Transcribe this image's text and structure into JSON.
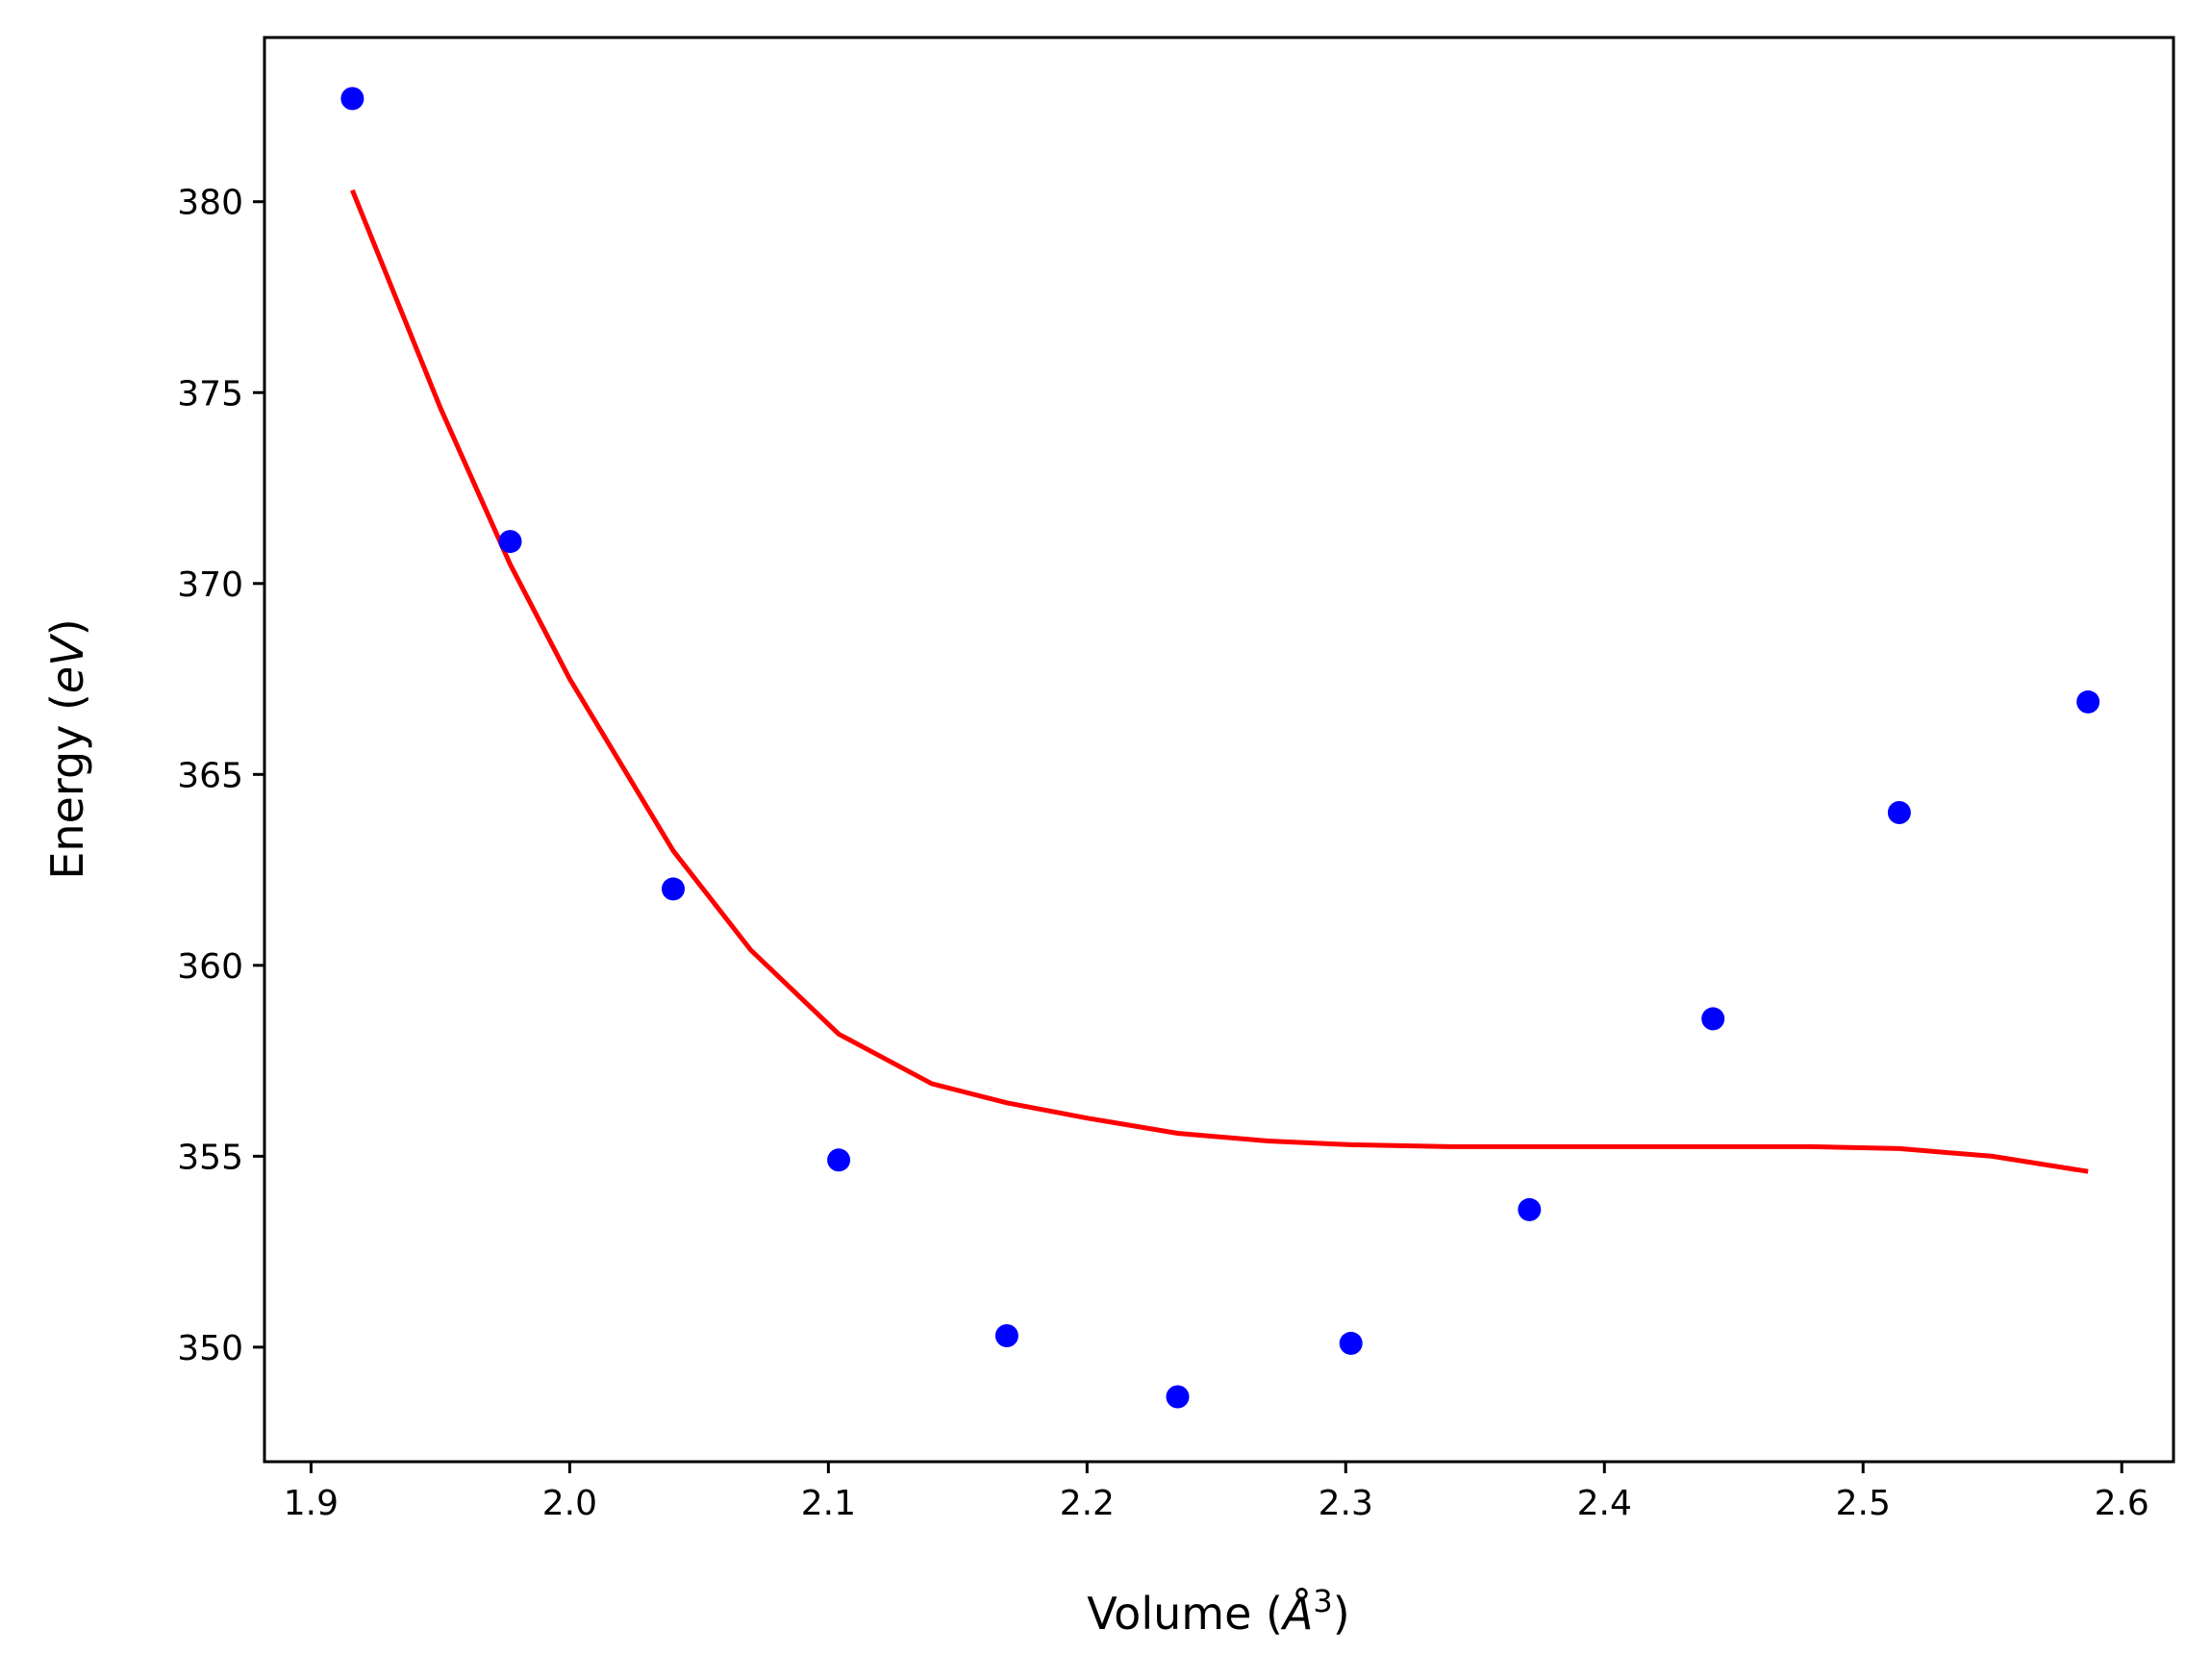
{
  "chart_data": {
    "type": "scatter",
    "title": "",
    "xlabel": {
      "prefix": "Volume (",
      "symbol": "Å",
      "sup": "3",
      "suffix": ")"
    },
    "ylabel": {
      "prefix": "Energy (",
      "unit": "eV",
      "suffix": ")"
    },
    "xlim": [
      1.882,
      2.62
    ],
    "ylim": [
      347.0,
      384.3
    ],
    "xticks": [
      {
        "value": 1.9,
        "label": "1.9"
      },
      {
        "value": 2.0,
        "label": "2.0"
      },
      {
        "value": 2.1,
        "label": "2.1"
      },
      {
        "value": 2.2,
        "label": "2.2"
      },
      {
        "value": 2.3,
        "label": "2.3"
      },
      {
        "value": 2.4,
        "label": "2.4"
      },
      {
        "value": 2.5,
        "label": "2.5"
      },
      {
        "value": 2.6,
        "label": "2.6"
      }
    ],
    "yticks": [
      {
        "value": 350,
        "label": "350"
      },
      {
        "value": 355,
        "label": "355"
      },
      {
        "value": 360,
        "label": "360"
      },
      {
        "value": 365,
        "label": "365"
      },
      {
        "value": 370,
        "label": "370"
      },
      {
        "value": 375,
        "label": "375"
      },
      {
        "value": 380,
        "label": "380"
      }
    ],
    "grid": false,
    "series": [
      {
        "kind": "scatter",
        "color": "#0000ff",
        "x": [
          1.916,
          1.977,
          2.04,
          2.104,
          2.169,
          2.235,
          2.302,
          2.371,
          2.442,
          2.514,
          2.587
        ],
        "y": [
          382.7,
          371.1,
          362.0,
          354.9,
          350.3,
          348.7,
          350.1,
          353.6,
          358.6,
          364.0,
          366.9
        ]
      },
      {
        "kind": "line",
        "color": "#ff0000",
        "x": [
          1.916,
          1.95,
          1.977,
          2.0,
          2.04,
          2.07,
          2.104,
          2.14,
          2.169,
          2.2,
          2.235,
          2.27,
          2.302,
          2.34,
          2.371,
          2.4,
          2.442,
          2.48,
          2.514,
          2.55,
          2.587
        ],
        "y": [
          380.3,
          374.6,
          370.5,
          367.5,
          363.0,
          360.4,
          358.2,
          356.9,
          356.4,
          356.0,
          355.6,
          355.4,
          355.3,
          355.25,
          355.25,
          355.25,
          355.25,
          355.25,
          355.2,
          355.0,
          354.6
        ]
      }
    ]
  }
}
